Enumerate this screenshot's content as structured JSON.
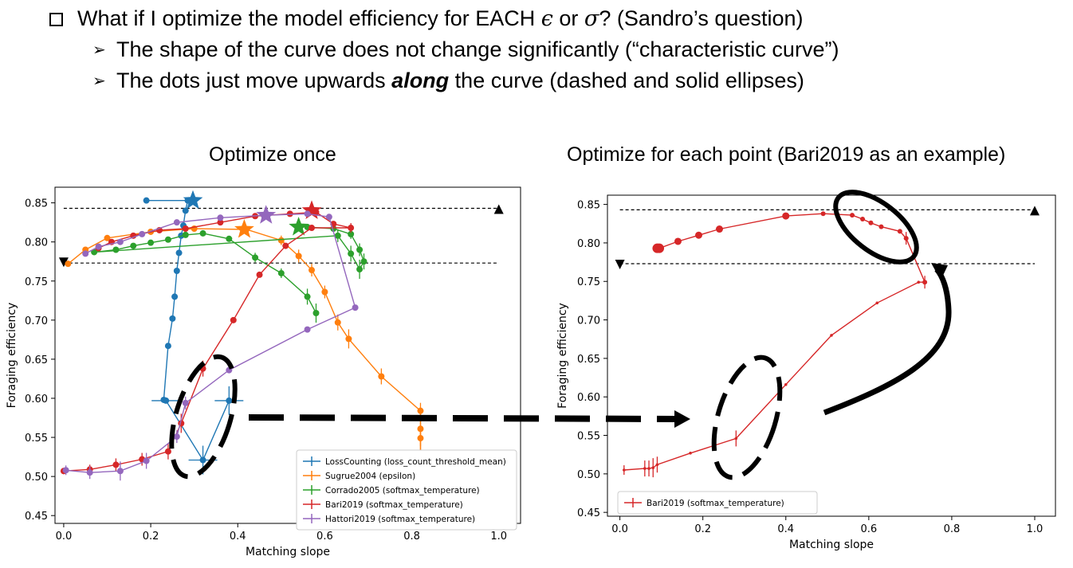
{
  "bullets": {
    "main_prefix": "What if I optimize the model efficiency for EACH ",
    "main_eps": "ϵ",
    "main_or": " or ",
    "main_sigma": "σ",
    "main_suffix": "? (Sandro’s question)",
    "sub1": "The shape of the curve does not change significantly (“characteristic curve”)",
    "sub2_pre": "The dots just move upwards ",
    "sub2_em": "along",
    "sub2_post": " the curve (dashed and solid ellipses)"
  },
  "headings": {
    "left": "Optimize once",
    "right": "Optimize for each point (Bari2019 as an example)"
  },
  "colors": {
    "blue": "#1f77b4",
    "orange": "#ff7f0e",
    "green": "#2ca02c",
    "red": "#d62728",
    "purple": "#9467bd"
  },
  "chart_data": [
    {
      "type": "line",
      "xlabel": "Matching slope",
      "ylabel": "Foraging efficiency",
      "xlim": [
        -0.02,
        1.05
      ],
      "ylim": [
        0.44,
        0.87
      ],
      "xticks": [
        0.0,
        0.2,
        0.4,
        0.6,
        0.8,
        1.0
      ],
      "yticks": [
        0.45,
        0.5,
        0.55,
        0.6,
        0.65,
        0.7,
        0.75,
        0.8,
        0.85
      ],
      "reference_lines": [
        0.843,
        0.773
      ],
      "reference_markers": [
        {
          "x": 1.0,
          "y": 0.842,
          "shape": "triangle-up"
        },
        {
          "x": 0.0,
          "y": 0.774,
          "shape": "triangle-down"
        }
      ],
      "legend_position": "lower-right",
      "series": [
        {
          "name": "LossCounting (loss_count_threshold_mean)",
          "color": "blue",
          "x": [
            0.38,
            0.32,
            0.235,
            0.23,
            0.24,
            0.25,
            0.255,
            0.26,
            0.265,
            0.27,
            0.275,
            0.28,
            0.285,
            0.29,
            0.3,
            0.19
          ],
          "y": [
            0.597,
            0.521,
            0.597,
            0.598,
            0.667,
            0.702,
            0.73,
            0.763,
            0.786,
            0.808,
            0.821,
            0.84,
            0.853,
            0.853,
            0.853,
            0.853
          ],
          "star": [
            0.297,
            0.853
          ]
        },
        {
          "name": "Sugrue2004 (epsilon)",
          "color": "orange",
          "x": [
            0.82,
            0.82,
            0.82,
            0.82,
            0.73,
            0.655,
            0.63,
            0.6,
            0.57,
            0.54,
            0.5,
            0.42,
            0.3,
            0.2,
            0.1,
            0.05,
            0.01
          ],
          "y": [
            0.512,
            0.549,
            0.561,
            0.584,
            0.628,
            0.676,
            0.697,
            0.736,
            0.764,
            0.782,
            0.802,
            0.816,
            0.817,
            0.813,
            0.805,
            0.79,
            0.772
          ],
          "star": [
            0.415,
            0.816
          ]
        },
        {
          "name": "Corrado2005 (softmax_temperature)",
          "color": "green",
          "x": [
            0.58,
            0.56,
            0.5,
            0.44,
            0.38,
            0.32,
            0.28,
            0.24,
            0.2,
            0.16,
            0.12,
            0.07,
            0.63,
            0.66,
            0.68,
            0.69,
            0.68,
            0.66,
            0.62,
            0.56
          ],
          "y": [
            0.709,
            0.73,
            0.76,
            0.78,
            0.804,
            0.811,
            0.809,
            0.803,
            0.799,
            0.795,
            0.79,
            0.787,
            0.808,
            0.785,
            0.765,
            0.775,
            0.79,
            0.81,
            0.817,
            0.819
          ],
          "star": [
            0.54,
            0.819
          ]
        },
        {
          "name": "Bari2019 (softmax_temperature)",
          "color": "red",
          "x": [
            0.0,
            0.06,
            0.12,
            0.18,
            0.24,
            0.27,
            0.32,
            0.39,
            0.45,
            0.51,
            0.57,
            0.66,
            0.62,
            0.58,
            0.52,
            0.44,
            0.36,
            0.28,
            0.22,
            0.16,
            0.11,
            0.08
          ],
          "y": [
            0.507,
            0.509,
            0.515,
            0.522,
            0.532,
            0.568,
            0.638,
            0.7,
            0.758,
            0.795,
            0.818,
            0.818,
            0.823,
            0.838,
            0.836,
            0.833,
            0.825,
            0.817,
            0.815,
            0.808,
            0.8,
            0.792
          ],
          "star": [
            0.57,
            0.84
          ]
        },
        {
          "name": "Hattori2019 (softmax_temperature)",
          "color": "purple",
          "x": [
            0.005,
            0.06,
            0.13,
            0.19,
            0.26,
            0.28,
            0.38,
            0.56,
            0.67,
            0.61,
            0.56,
            0.46,
            0.36,
            0.26,
            0.18,
            0.13,
            0.08,
            0.05
          ],
          "y": [
            0.508,
            0.505,
            0.507,
            0.52,
            0.551,
            0.594,
            0.636,
            0.688,
            0.716,
            0.832,
            0.836,
            0.834,
            0.831,
            0.825,
            0.81,
            0.8,
            0.794,
            0.785
          ],
          "star": [
            0.465,
            0.834
          ]
        }
      ]
    },
    {
      "type": "line",
      "xlabel": "Matching slope",
      "ylabel": "Foraging efficiency",
      "xlim": [
        -0.03,
        1.05
      ],
      "ylim": [
        0.445,
        0.862
      ],
      "xticks": [
        0.0,
        0.2,
        0.4,
        0.6,
        0.8,
        1.0
      ],
      "yticks": [
        0.45,
        0.5,
        0.55,
        0.6,
        0.65,
        0.7,
        0.75,
        0.8,
        0.85
      ],
      "reference_lines": [
        0.843,
        0.773
      ],
      "reference_markers": [
        {
          "x": 1.0,
          "y": 0.842,
          "shape": "triangle-up"
        },
        {
          "x": 0.0,
          "y": 0.772,
          "shape": "triangle-down"
        }
      ],
      "legend_position": "lower-left",
      "series": [
        {
          "name": "Bari2019 (softmax_temperature)",
          "color": "red",
          "x": [
            0.01,
            0.06,
            0.07,
            0.08,
            0.09,
            0.17,
            0.28,
            0.4,
            0.51,
            0.62,
            0.72,
            0.735,
            0.69,
            0.675,
            0.63,
            0.605,
            0.585,
            0.56,
            0.49,
            0.4,
            0.24,
            0.19,
            0.14,
            0.095,
            0.09
          ],
          "y": [
            0.505,
            0.507,
            0.507,
            0.508,
            0.512,
            0.527,
            0.546,
            0.616,
            0.68,
            0.722,
            0.749,
            0.749,
            0.806,
            0.815,
            0.821,
            0.826,
            0.831,
            0.836,
            0.838,
            0.835,
            0.818,
            0.81,
            0.802,
            0.793,
            0.793
          ]
        }
      ]
    }
  ]
}
